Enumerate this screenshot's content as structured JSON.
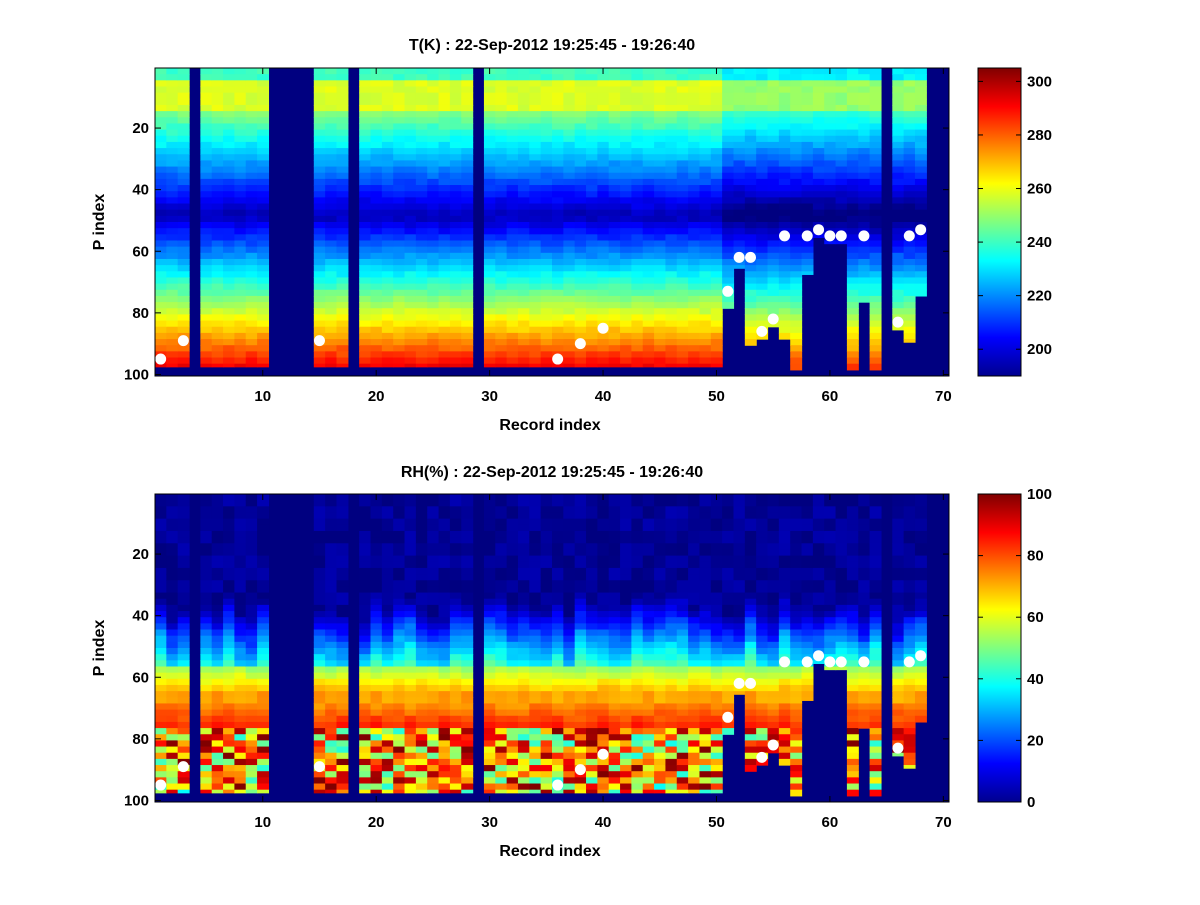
{
  "chart_data": [
    {
      "type": "heatmap",
      "title": "T(K) : 22-Sep-2012 19:25:45 - 19:26:40",
      "xlabel": "Record index",
      "ylabel": "P index",
      "xlim": [
        0.5,
        70.5
      ],
      "ylim": [
        100.5,
        0.5
      ],
      "y_reversed": true,
      "xticks": [
        10,
        20,
        30,
        40,
        50,
        60,
        70
      ],
      "yticks": [
        20,
        40,
        60,
        80,
        100
      ],
      "colormap": "jet",
      "colorbar": {
        "range": [
          190,
          305
        ],
        "ticks": [
          200,
          220,
          240,
          260,
          280,
          300
        ]
      },
      "no_data_columns": [
        4,
        11,
        12,
        13,
        14,
        18,
        29,
        65,
        69,
        70
      ],
      "markers": [
        {
          "x": 1,
          "y": 95
        },
        {
          "x": 3,
          "y": 89
        },
        {
          "x": 15,
          "y": 89
        },
        {
          "x": 36,
          "y": 95
        },
        {
          "x": 38,
          "y": 90
        },
        {
          "x": 40,
          "y": 85
        },
        {
          "x": 51,
          "y": 73
        },
        {
          "x": 52,
          "y": 62
        },
        {
          "x": 53,
          "y": 62
        },
        {
          "x": 54,
          "y": 86
        },
        {
          "x": 55,
          "y": 82
        },
        {
          "x": 56,
          "y": 55
        },
        {
          "x": 58,
          "y": 55
        },
        {
          "x": 59,
          "y": 53
        },
        {
          "x": 60,
          "y": 55
        },
        {
          "x": 61,
          "y": 55
        },
        {
          "x": 63,
          "y": 55
        },
        {
          "x": 66,
          "y": 83
        },
        {
          "x": 67,
          "y": 55
        },
        {
          "x": 68,
          "y": 53
        }
      ],
      "column_bottom": [
        {
          "x": 51,
          "y": 78
        },
        {
          "x": 52,
          "y": 65
        },
        {
          "x": 53,
          "y": 90
        },
        {
          "x": 54,
          "y": 88
        },
        {
          "x": 55,
          "y": 84
        },
        {
          "x": 56,
          "y": 88
        },
        {
          "x": 57,
          "y": 98
        },
        {
          "x": 58,
          "y": 67
        },
        {
          "x": 59,
          "y": 55
        },
        {
          "x": 60,
          "y": 57
        },
        {
          "x": 61,
          "y": 57
        },
        {
          "x": 62,
          "y": 98
        },
        {
          "x": 63,
          "y": 76
        },
        {
          "x": 64,
          "y": 98
        },
        {
          "x": 66,
          "y": 85
        },
        {
          "x": 67,
          "y": 89
        },
        {
          "x": 68,
          "y": 74
        }
      ]
    },
    {
      "type": "heatmap",
      "title": "RH(%) : 22-Sep-2012 19:25:45 - 19:26:40",
      "xlabel": "Record index",
      "ylabel": "P index",
      "xlim": [
        0.5,
        70.5
      ],
      "ylim": [
        100.5,
        0.5
      ],
      "y_reversed": true,
      "xticks": [
        10,
        20,
        30,
        40,
        50,
        60,
        70
      ],
      "yticks": [
        20,
        40,
        60,
        80,
        100
      ],
      "colormap": "jet",
      "colorbar": {
        "range": [
          0,
          100
        ],
        "ticks": [
          0,
          20,
          40,
          60,
          80,
          100
        ]
      },
      "no_data_columns": [
        4,
        11,
        12,
        13,
        14,
        18,
        29,
        65,
        69,
        70
      ],
      "markers": [
        {
          "x": 1,
          "y": 95
        },
        {
          "x": 3,
          "y": 89
        },
        {
          "x": 15,
          "y": 89
        },
        {
          "x": 36,
          "y": 95
        },
        {
          "x": 38,
          "y": 90
        },
        {
          "x": 40,
          "y": 85
        },
        {
          "x": 51,
          "y": 73
        },
        {
          "x": 52,
          "y": 62
        },
        {
          "x": 53,
          "y": 62
        },
        {
          "x": 54,
          "y": 86
        },
        {
          "x": 55,
          "y": 82
        },
        {
          "x": 56,
          "y": 55
        },
        {
          "x": 58,
          "y": 55
        },
        {
          "x": 59,
          "y": 53
        },
        {
          "x": 60,
          "y": 55
        },
        {
          "x": 61,
          "y": 55
        },
        {
          "x": 63,
          "y": 55
        },
        {
          "x": 66,
          "y": 83
        },
        {
          "x": 67,
          "y": 55
        },
        {
          "x": 68,
          "y": 53
        }
      ],
      "column_bottom": [
        {
          "x": 51,
          "y": 78
        },
        {
          "x": 52,
          "y": 65
        },
        {
          "x": 53,
          "y": 90
        },
        {
          "x": 54,
          "y": 88
        },
        {
          "x": 55,
          "y": 84
        },
        {
          "x": 56,
          "y": 88
        },
        {
          "x": 57,
          "y": 98
        },
        {
          "x": 58,
          "y": 67
        },
        {
          "x": 59,
          "y": 55
        },
        {
          "x": 60,
          "y": 57
        },
        {
          "x": 61,
          "y": 57
        },
        {
          "x": 62,
          "y": 98
        },
        {
          "x": 63,
          "y": 76
        },
        {
          "x": 64,
          "y": 98
        },
        {
          "x": 66,
          "y": 85
        },
        {
          "x": 67,
          "y": 89
        },
        {
          "x": 68,
          "y": 74
        }
      ]
    }
  ]
}
